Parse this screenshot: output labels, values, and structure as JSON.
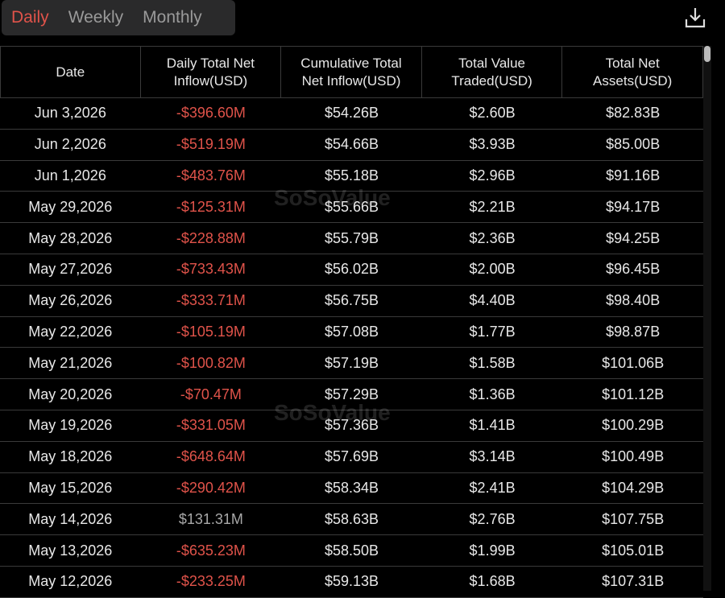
{
  "tabs": [
    "Daily",
    "Weekly",
    "Monthly"
  ],
  "watermark": "SoSoValue",
  "table": {
    "headers": [
      "Date",
      "Daily Total Net Inflow(USD)",
      "Cumulative Total Net Inflow(USD)",
      "Total Value Traded(USD)",
      "Total Net Assets(USD)"
    ],
    "rows": [
      [
        "Jun 3,2026",
        "-$396.60M",
        "$54.26B",
        "$2.60B",
        "$82.83B"
      ],
      [
        "Jun 2,2026",
        "-$519.19M",
        "$54.66B",
        "$3.93B",
        "$85.00B"
      ],
      [
        "Jun 1,2026",
        "-$483.76M",
        "$55.18B",
        "$2.96B",
        "$91.16B"
      ],
      [
        "May 29,2026",
        "-$125.31M",
        "$55.66B",
        "$2.21B",
        "$94.17B"
      ],
      [
        "May 28,2026",
        "-$228.88M",
        "$55.79B",
        "$2.36B",
        "$94.25B"
      ],
      [
        "May 27,2026",
        "-$733.43M",
        "$56.02B",
        "$2.00B",
        "$96.45B"
      ],
      [
        "May 26,2026",
        "-$333.71M",
        "$56.75B",
        "$4.40B",
        "$98.40B"
      ],
      [
        "May 22,2026",
        "-$105.19M",
        "$57.08B",
        "$1.77B",
        "$98.87B"
      ],
      [
        "May 21,2026",
        "-$100.82M",
        "$57.19B",
        "$1.58B",
        "$101.06B"
      ],
      [
        "May 20,2026",
        "-$70.47M",
        "$57.29B",
        "$1.36B",
        "$101.12B"
      ],
      [
        "May 19,2026",
        "-$331.05M",
        "$57.36B",
        "$1.41B",
        "$100.29B"
      ],
      [
        "May 18,2026",
        "-$648.64M",
        "$57.69B",
        "$3.14B",
        "$100.49B"
      ],
      [
        "May 15,2026",
        "-$290.42M",
        "$58.34B",
        "$2.41B",
        "$104.29B"
      ],
      [
        "May 14,2026",
        "$131.31M",
        "$58.63B",
        "$2.76B",
        "$107.75B"
      ],
      [
        "May 13,2026",
        "-$635.23M",
        "$58.50B",
        "$1.99B",
        "$105.01B"
      ],
      [
        "May 12,2026",
        "-$233.25M",
        "$59.13B",
        "$1.68B",
        "$107.31B"
      ]
    ]
  }
}
